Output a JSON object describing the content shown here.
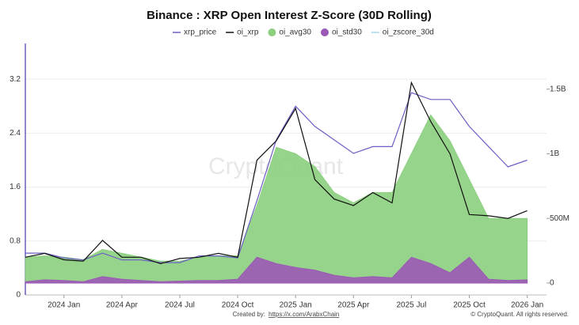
{
  "chart_data": {
    "type": "line",
    "title": "Binance : XRP Open Interest Z-Score (30D Rolling)",
    "watermark": "CryptoQuant",
    "credit_label": "Created by:",
    "credit_link": "https://x.com/ArabxChain",
    "copyright": "© CryptoQuant. All rights reserved.",
    "x": [
      "2023-11",
      "2023-12",
      "2024-01",
      "2024-02",
      "2024-03",
      "2024-04",
      "2024-05",
      "2024-06",
      "2024-07",
      "2024-08",
      "2024-09",
      "2024-10",
      "2024-11",
      "2024-12",
      "2025-01",
      "2025-02",
      "2025-03",
      "2025-04",
      "2025-05",
      "2025-06",
      "2025-07",
      "2025-08",
      "2025-09",
      "2025-10",
      "2025-11",
      "2025-12",
      "2026-01"
    ],
    "xlim": [
      "2023-11",
      "2026-02"
    ],
    "xticks": [
      {
        "value": "2024-01",
        "label": "2024 Jan"
      },
      {
        "value": "2024-04",
        "label": "2024 Apr"
      },
      {
        "value": "2024-07",
        "label": "2024 Jul"
      },
      {
        "value": "2024-10",
        "label": "2024 Oct"
      },
      {
        "value": "2025-01",
        "label": "2025 Jan"
      },
      {
        "value": "2025-04",
        "label": "2025 Apr"
      },
      {
        "value": "2025-07",
        "label": "2025 Jul"
      },
      {
        "value": "2025-10",
        "label": "2025 Oct"
      },
      {
        "value": "2026-01",
        "label": "2026 Jan"
      }
    ],
    "ylim": [
      0,
      3.73
    ],
    "yticks": [
      0,
      0.8,
      1.6,
      2.4,
      3.2
    ],
    "y2lim": [
      -92000000,
      1853000000
    ],
    "y2ticks": [
      0,
      {
        "value": 500000000,
        "label": "500M"
      },
      {
        "value": 1000000000,
        "label": "1B"
      },
      {
        "value": 1500000000,
        "label": "1.5B"
      }
    ],
    "grid": true,
    "series": [
      {
        "name": "oi_avg30",
        "kind": "area",
        "axis": "y2",
        "color": "#8ccf7e",
        "values": [
          200000000,
          210000000,
          200000000,
          180000000,
          260000000,
          230000000,
          200000000,
          170000000,
          170000000,
          200000000,
          210000000,
          210000000,
          600000000,
          1050000000,
          1000000000,
          900000000,
          700000000,
          620000000,
          700000000,
          700000000,
          1000000000,
          1300000000,
          1100000000,
          800000000,
          500000000,
          500000000,
          500000000
        ]
      },
      {
        "name": "oi_std30",
        "kind": "area",
        "axis": "y2",
        "color": "#9b59b6",
        "values": [
          10000000,
          25000000,
          20000000,
          10000000,
          50000000,
          30000000,
          20000000,
          10000000,
          15000000,
          20000000,
          20000000,
          30000000,
          200000000,
          150000000,
          120000000,
          100000000,
          60000000,
          40000000,
          50000000,
          40000000,
          200000000,
          150000000,
          80000000,
          200000000,
          30000000,
          20000000,
          25000000
        ]
      },
      {
        "name": "xrp_price",
        "kind": "line",
        "color": "#6a5fc7",
        "values": [
          0.62,
          0.62,
          0.55,
          0.52,
          0.62,
          0.52,
          0.52,
          0.48,
          0.48,
          0.58,
          0.58,
          0.55,
          1.4,
          2.3,
          2.8,
          2.5,
          2.3,
          2.1,
          2.2,
          2.2,
          3.0,
          2.9,
          2.9,
          2.5,
          2.2,
          1.9,
          2.0
        ]
      },
      {
        "name": "oi_xrp",
        "kind": "line",
        "axis": "y2",
        "color": "#111111",
        "values": [
          200000000,
          230000000,
          180000000,
          170000000,
          330000000,
          200000000,
          200000000,
          150000000,
          190000000,
          200000000,
          230000000,
          200000000,
          950000000,
          1100000000,
          1350000000,
          800000000,
          650000000,
          600000000,
          700000000,
          620000000,
          1550000000,
          1250000000,
          1000000000,
          530000000,
          520000000,
          500000000,
          560000000
        ]
      },
      {
        "name": "oi_zscore_30d",
        "kind": "line",
        "color": "#a9d4e8",
        "values": [
          null,
          null,
          null,
          null,
          null,
          null,
          null,
          null,
          null,
          null,
          null,
          null,
          null,
          null,
          null,
          null,
          null,
          null,
          null,
          null,
          null,
          null,
          null,
          null,
          null,
          null,
          null
        ]
      }
    ]
  }
}
